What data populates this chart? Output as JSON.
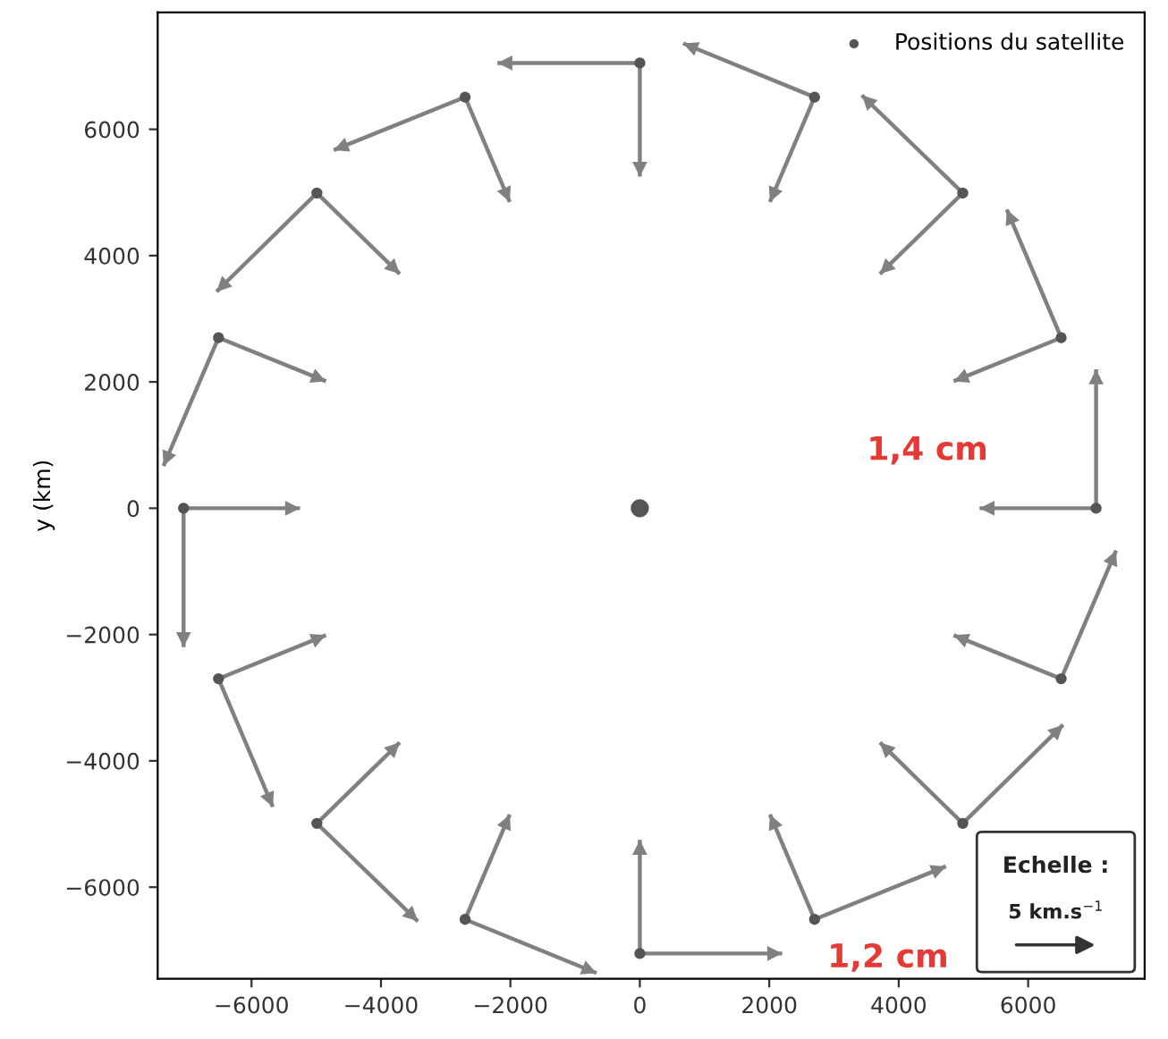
{
  "chart_data": {
    "type": "scatter",
    "ylabel": "y (km)",
    "xlim": [
      -7450,
      7800
    ],
    "ylim": [
      -7450,
      7850
    ],
    "xticks": [
      {
        "value": -6000,
        "label": "−6000"
      },
      {
        "value": -4000,
        "label": "−4000"
      },
      {
        "value": -2000,
        "label": "−2000"
      },
      0,
      2000,
      4000,
      6000
    ],
    "yticks": [
      {
        "value": -6000,
        "label": "−6000"
      },
      {
        "value": -4000,
        "label": "−4000"
      },
      {
        "value": -2000,
        "label": "−2000"
      },
      0,
      2000,
      4000,
      6000
    ],
    "legend": "top right",
    "grid": false,
    "annotations": [
      "1,4 cm",
      "Echelle :",
      "5 km.s$^{−1}$",
      "1,2 cm"
    ],
    "series": [
      {
        "name": "Positions du satellite",
        "marker": "circle",
        "color": "#555555",
        "x": [
          7050,
          6510,
          4990,
          2700,
          0,
          -2700,
          -4990,
          -6510,
          -7050,
          -6510,
          -4990,
          -2700,
          0,
          2700,
          4990,
          6510
        ],
        "values": [
          0,
          2700,
          4990,
          6510,
          7050,
          6510,
          4990,
          2700,
          0,
          -2700,
          -4990,
          -6510,
          -7050,
          -6510,
          -4990,
          -2700
        ]
      },
      {
        "marker": "circle",
        "color": "#555555",
        "x": [
          0
        ],
        "values": [
          0
        ]
      },
      {
        "type": "line",
        "color": "#808080",
        "x": [
          7050,
          7050
        ],
        "values": [
          0,
          2200
        ]
      },
      {
        "type": "line",
        "color": "#808080",
        "x": [
          7050,
          5250
        ],
        "values": [
          0,
          0
        ]
      },
      {
        "type": "line",
        "color": "#808080",
        "x": [
          6510,
          5670
        ],
        "values": [
          2700,
          4730
        ]
      },
      {
        "type": "line",
        "color": "#808080",
        "x": [
          6510,
          4850
        ],
        "values": [
          2700,
          2010
        ]
      },
      {
        "type": "line",
        "color": "#808080",
        "x": [
          4990,
          3430
        ],
        "values": [
          4990,
          6540
        ]
      },
      {
        "type": "line",
        "color": "#808080",
        "x": [
          4990,
          3710
        ],
        "values": [
          4990,
          3710
        ]
      },
      {
        "type": "line",
        "color": "#808080",
        "x": [
          2700,
          670
        ],
        "values": [
          6510,
          7360
        ]
      },
      {
        "type": "line",
        "color": "#808080",
        "x": [
          2700,
          2010
        ],
        "values": [
          6510,
          4850
        ]
      },
      {
        "type": "line",
        "color": "#808080",
        "x": [
          0,
          -2200
        ],
        "values": [
          7050,
          7050
        ]
      },
      {
        "type": "line",
        "color": "#808080",
        "x": [
          0,
          0
        ],
        "values": [
          7050,
          5250
        ]
      },
      {
        "type": "line",
        "color": "#808080",
        "x": [
          -2700,
          -4730
        ],
        "values": [
          6510,
          5670
        ]
      },
      {
        "type": "line",
        "color": "#808080",
        "x": [
          -2700,
          -2010
        ],
        "values": [
          6510,
          4850
        ]
      },
      {
        "type": "line",
        "color": "#808080",
        "x": [
          -4990,
          -6540
        ],
        "values": [
          4990,
          3430
        ]
      },
      {
        "type": "line",
        "color": "#808080",
        "x": [
          -4990,
          -3710
        ],
        "values": [
          4990,
          3710
        ]
      },
      {
        "type": "line",
        "color": "#808080",
        "x": [
          -6510,
          -7360
        ],
        "values": [
          2700,
          670
        ]
      },
      {
        "type": "line",
        "color": "#808080",
        "x": [
          -6510,
          -4850
        ],
        "values": [
          2700,
          2010
        ]
      },
      {
        "type": "line",
        "color": "#808080",
        "x": [
          -7050,
          -7050
        ],
        "values": [
          0,
          -2200
        ]
      },
      {
        "type": "line",
        "color": "#808080",
        "x": [
          -7050,
          -5250
        ],
        "values": [
          0,
          0
        ]
      },
      {
        "type": "line",
        "color": "#808080",
        "x": [
          -6510,
          -5670
        ],
        "values": [
          -2700,
          -4730
        ]
      },
      {
        "type": "line",
        "color": "#808080",
        "x": [
          -6510,
          -4850
        ],
        "values": [
          -2700,
          -2010
        ]
      },
      {
        "type": "line",
        "color": "#808080",
        "x": [
          -4990,
          -3430
        ],
        "values": [
          -4990,
          -6540
        ]
      },
      {
        "type": "line",
        "color": "#808080",
        "x": [
          -4990,
          -3710
        ],
        "values": [
          -4990,
          -3710
        ]
      },
      {
        "type": "line",
        "color": "#808080",
        "x": [
          -2700,
          -670
        ],
        "values": [
          -6510,
          -7360
        ]
      },
      {
        "type": "line",
        "color": "#808080",
        "x": [
          -2700,
          -2010
        ],
        "values": [
          -6510,
          -4850
        ]
      },
      {
        "type": "line",
        "color": "#808080",
        "x": [
          0,
          2200
        ],
        "values": [
          -7050,
          -7050
        ]
      },
      {
        "type": "line",
        "color": "#808080",
        "x": [
          0,
          0
        ],
        "values": [
          -7050,
          -5250
        ]
      },
      {
        "type": "line",
        "color": "#808080",
        "x": [
          2700,
          4730
        ],
        "values": [
          -6510,
          -5670
        ]
      },
      {
        "type": "line",
        "color": "#808080",
        "x": [
          2700,
          2010
        ],
        "values": [
          -6510,
          -4850
        ]
      },
      {
        "type": "line",
        "color": "#808080",
        "x": [
          4990,
          6540
        ],
        "values": [
          -4990,
          -3430
        ]
      },
      {
        "type": "line",
        "color": "#808080",
        "x": [
          4990,
          3710
        ],
        "values": [
          -4990,
          -3710
        ]
      },
      {
        "type": "line",
        "color": "#808080",
        "x": [
          6510,
          7360
        ],
        "values": [
          -2700,
          -670
        ]
      },
      {
        "type": "line",
        "color": "#808080",
        "x": [
          6510,
          4850
        ],
        "values": [
          -2700,
          -2010
        ]
      }
    ]
  }
}
